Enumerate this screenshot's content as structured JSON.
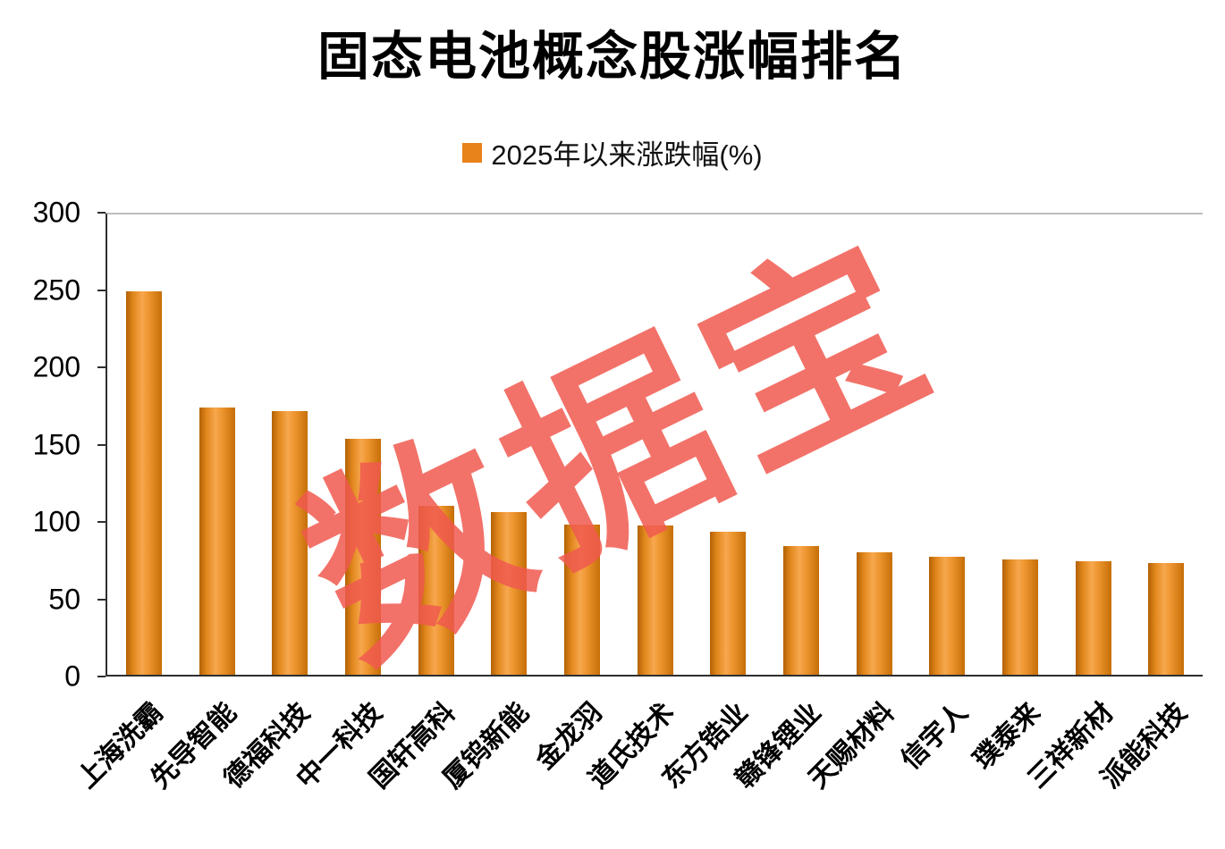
{
  "title": "固态电池概念股涨幅排名",
  "legend": {
    "label": "2025年以来涨跌幅(%)",
    "swatch_color": "#E8821A"
  },
  "watermark": "数据宝",
  "colors": {
    "bar": "#E8821A",
    "bar_edge_dark": "#B36105",
    "bar_highlight": "#F7A74E",
    "watermark": "#F0594F",
    "axis": "#2F2F2F",
    "top_border": "#BDBDBD",
    "text": "#000000"
  },
  "chart_data": {
    "type": "bar",
    "title": "固态电池概念股涨幅排名",
    "legend": "2025年以来涨跌幅(%)",
    "categories": [
      "上海洗霸",
      "先导智能",
      "德福科技",
      "中一科技",
      "国轩高科",
      "厦钨新能",
      "金龙羽",
      "道氏技术",
      "东方锆业",
      "赣锋锂业",
      "天赐材料",
      "信宇人",
      "璞泰来",
      "三祥新材",
      "派能科技"
    ],
    "values": [
      250,
      174,
      172,
      154,
      110,
      106,
      98,
      97,
      93,
      84,
      80,
      77,
      75,
      74,
      73
    ],
    "xlabel": "",
    "ylabel": "",
    "ylim": [
      0,
      300
    ],
    "yticks": [
      0,
      50,
      100,
      150,
      200,
      250,
      300
    ],
    "grid": false,
    "legend_position": "top-center",
    "watermark": "数据宝"
  }
}
